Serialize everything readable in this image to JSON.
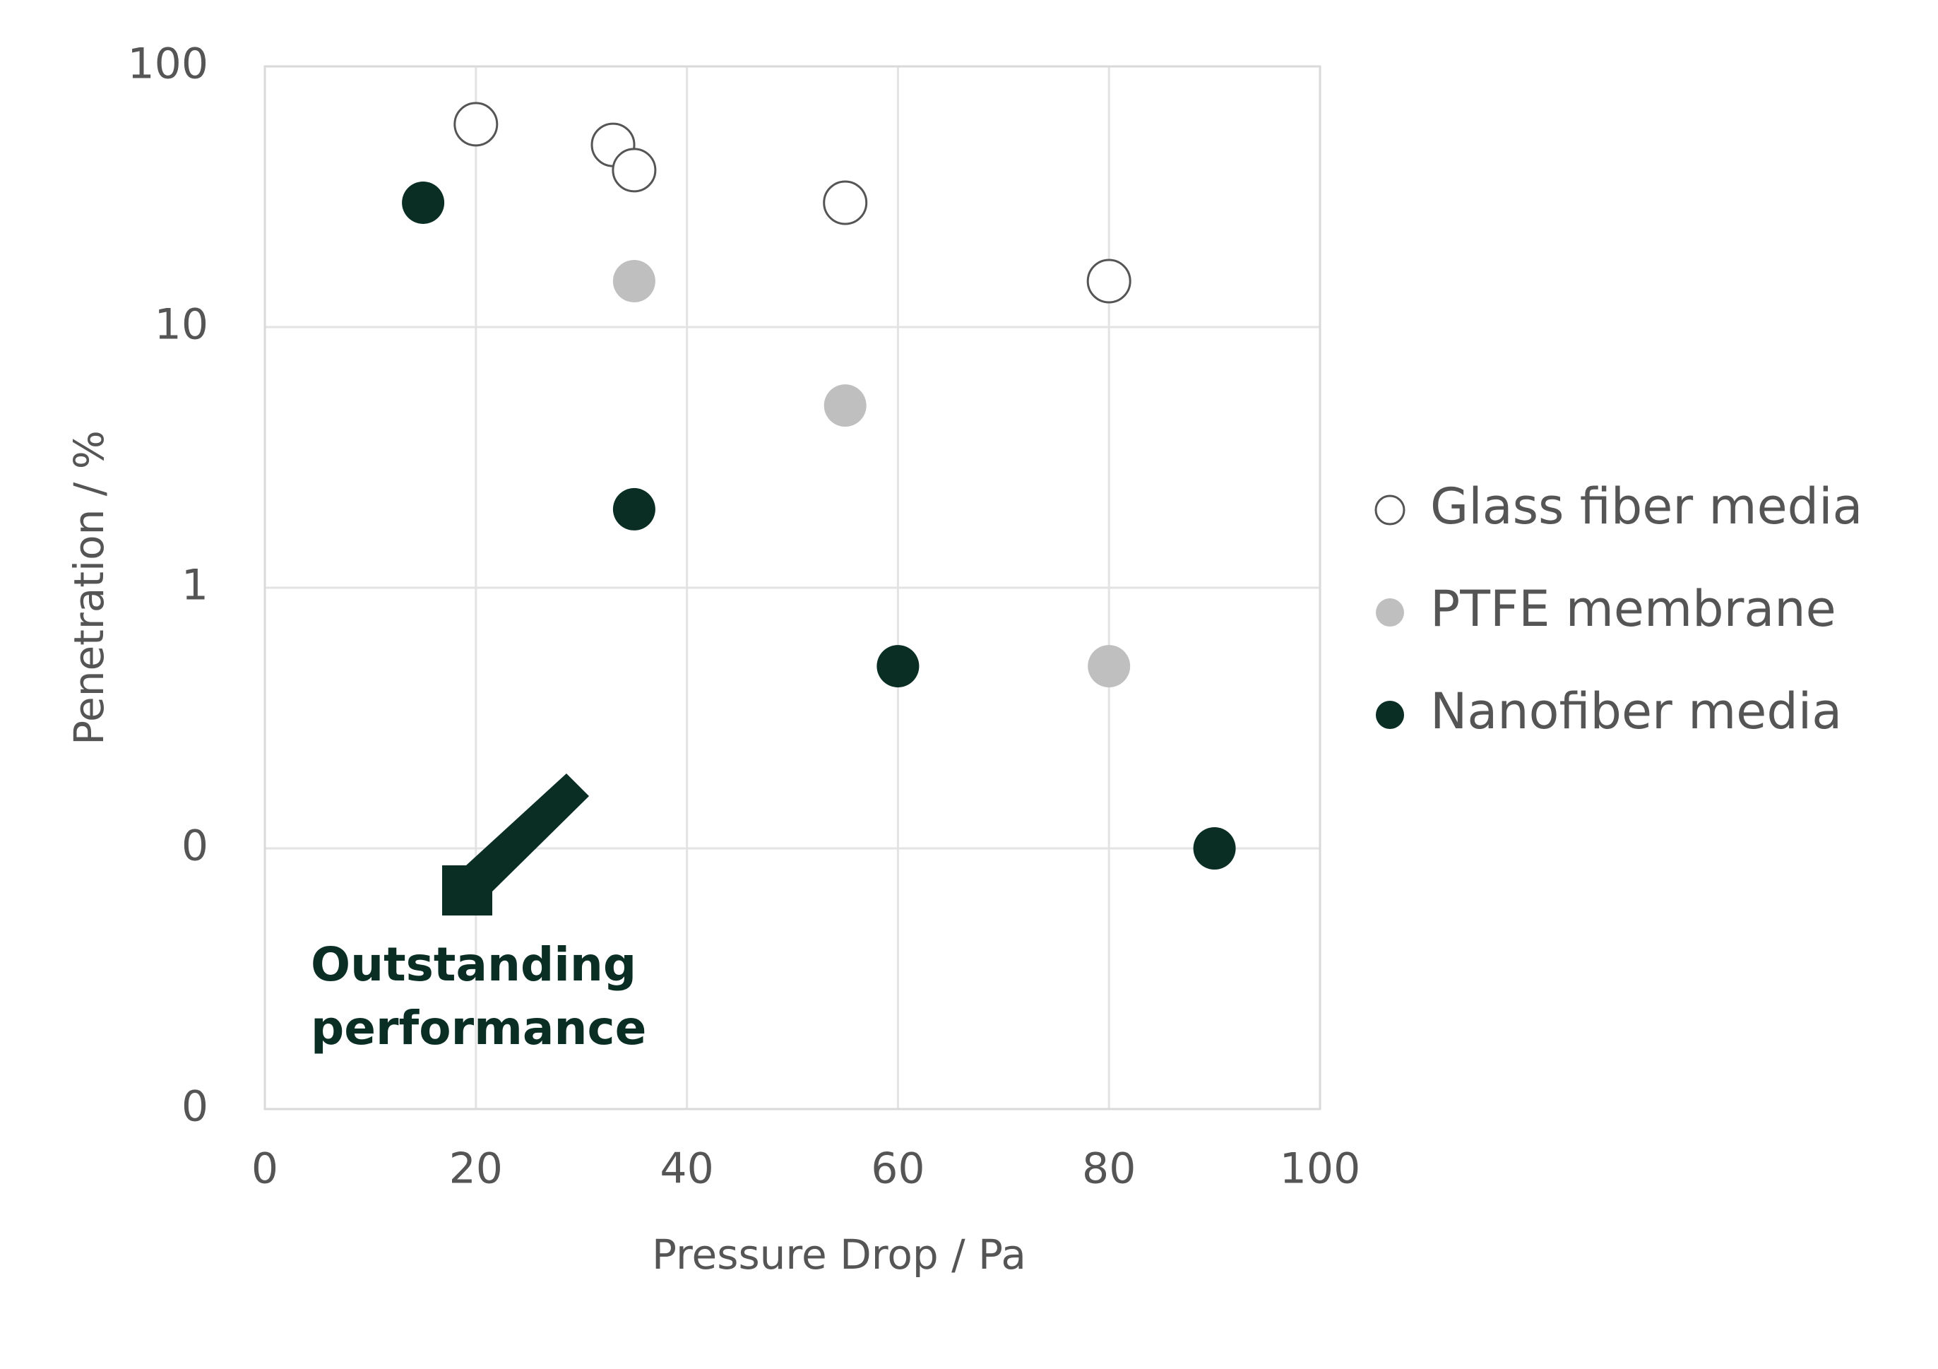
{
  "chart_data": {
    "type": "scatter",
    "xlabel": "Pressure Drop / Pa",
    "ylabel": "Penetration / %",
    "xlim": [
      0,
      100
    ],
    "xticks": [
      0,
      20,
      40,
      60,
      80,
      100
    ],
    "ylim": [
      0.01,
      100
    ],
    "yscale": "log",
    "yticks": [
      100,
      10,
      1,
      {
        "value": 0.1,
        "label": "0"
      },
      {
        "value": 0.01,
        "label": "0"
      }
    ],
    "grid": true,
    "legend": "right",
    "series": [
      {
        "name": "Glass fiber media",
        "color": "#ffffff",
        "edgecolor": "#555555",
        "x": [
          20,
          33,
          35,
          55,
          80
        ],
        "values": [
          60,
          50,
          40,
          30,
          15
        ]
      },
      {
        "name": "PTFE membrane",
        "color": "#bfbfbf",
        "x": [
          35,
          55,
          80
        ],
        "values": [
          15,
          5,
          0.5
        ]
      },
      {
        "name": "Nanofiber media",
        "color": "#0a2e24",
        "x": [
          15,
          35,
          60,
          90
        ],
        "values": [
          30,
          2,
          0.5,
          0.1
        ]
      }
    ],
    "annotation": {
      "lines": [
        "Outstanding",
        "performance"
      ],
      "color": "#0a2e24"
    }
  }
}
